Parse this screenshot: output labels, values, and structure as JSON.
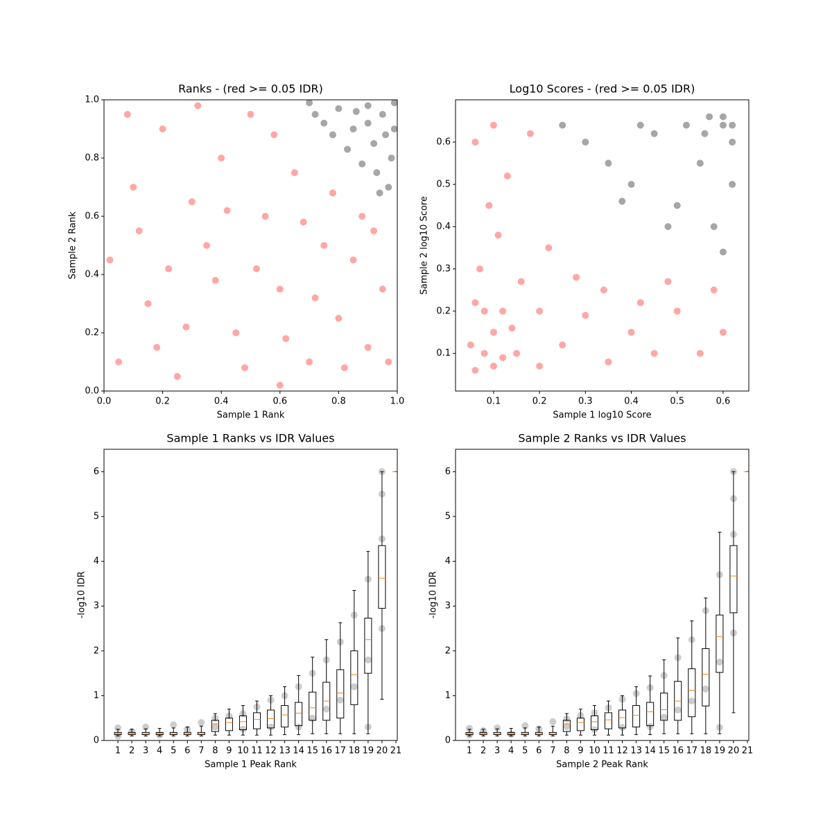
{
  "chart_data": [
    {
      "type": "scatter",
      "title": "Ranks - (red >= 0.05 IDR)",
      "x_label": "Sample 1 Rank",
      "y_label": "Sample 2 Rank",
      "xlim": [
        0,
        1
      ],
      "ylim": [
        0,
        1
      ],
      "xticks": [
        {
          "value": 0,
          "label": "0.0"
        },
        0.2,
        0.4,
        0.6,
        0.8,
        {
          "value": 1,
          "label": "1.0"
        }
      ],
      "yticks": [
        {
          "value": 0,
          "label": "0.0"
        },
        0.2,
        0.4,
        0.6,
        0.8,
        {
          "value": 1,
          "label": "1.0"
        }
      ],
      "series": [
        {
          "color": "#ff0000",
          "alpha": 0.35,
          "x": [
            0.05,
            0.15,
            0.25,
            0.35,
            0.1,
            0.2,
            0.45,
            0.55,
            0.6,
            0.7,
            0.8,
            0.75,
            0.4,
            0.3,
            0.5,
            0.65,
            0.85,
            0.9,
            0.95,
            0.02,
            0.12,
            0.28,
            0.38,
            0.48,
            0.58,
            0.68,
            0.78,
            0.88,
            0.08,
            0.18,
            0.32,
            0.42,
            0.52,
            0.62,
            0.72,
            0.82,
            0.92,
            0.97,
            0.22,
            0.6
          ],
          "y": [
            0.1,
            0.3,
            0.05,
            0.5,
            0.7,
            0.9,
            0.2,
            0.6,
            0.35,
            0.1,
            0.25,
            0.5,
            0.8,
            0.65,
            0.95,
            0.75,
            0.45,
            0.15,
            0.35,
            0.45,
            0.55,
            0.22,
            0.38,
            0.08,
            0.88,
            0.58,
            0.68,
            0.6,
            0.95,
            0.15,
            0.98,
            0.62,
            0.42,
            0.18,
            0.32,
            0.08,
            0.55,
            0.1,
            0.42,
            0.02
          ]
        },
        {
          "color": "#000000",
          "alpha": 0.35,
          "x": [
            0.95,
            0.9,
            0.85,
            0.98,
            0.92,
            0.8,
            0.75,
            0.88,
            0.97,
            0.7,
            0.93,
            0.83,
            0.99,
            0.9,
            0.96,
            0.78,
            0.86,
            0.94,
            0.72,
            0.99
          ],
          "y": [
            0.95,
            0.98,
            0.9,
            0.8,
            0.85,
            0.97,
            0.92,
            0.78,
            0.7,
            0.99,
            0.75,
            0.83,
            0.99,
            0.92,
            0.88,
            0.88,
            0.96,
            0.68,
            0.95,
            0.9
          ]
        }
      ]
    },
    {
      "type": "scatter",
      "title": "Log10 Scores - (red >= 0.05 IDR)",
      "x_label": "Sample 1 log10 Score",
      "y_label": "Sample 2 log10 Score",
      "xlim": [
        0.017,
        0.656
      ],
      "ylim": [
        0.011,
        0.7
      ],
      "xticks": [
        0.1,
        0.2,
        0.3,
        0.4,
        0.5,
        0.6
      ],
      "yticks": [
        0.1,
        0.2,
        0.3,
        0.4,
        0.5,
        0.6
      ],
      "series": [
        {
          "color": "#ff0000",
          "alpha": 0.35,
          "x": [
            0.06,
            0.08,
            0.1,
            0.12,
            0.07,
            0.09,
            0.06,
            0.15,
            0.2,
            0.25,
            0.3,
            0.35,
            0.4,
            0.45,
            0.5,
            0.55,
            0.6,
            0.11,
            0.13,
            0.18,
            0.16,
            0.22,
            0.28,
            0.34,
            0.42,
            0.48,
            0.58,
            0.1,
            0.05,
            0.08,
            0.12,
            0.14,
            0.2,
            0.06,
            0.1
          ],
          "y": [
            0.06,
            0.1,
            0.15,
            0.2,
            0.3,
            0.45,
            0.6,
            0.1,
            0.07,
            0.12,
            0.19,
            0.08,
            0.15,
            0.1,
            0.2,
            0.1,
            0.15,
            0.38,
            0.52,
            0.62,
            0.27,
            0.35,
            0.28,
            0.25,
            0.22,
            0.27,
            0.25,
            0.64,
            0.12,
            0.2,
            0.09,
            0.16,
            0.2,
            0.22,
            0.07
          ]
        },
        {
          "color": "#000000",
          "alpha": 0.35,
          "x": [
            0.3,
            0.4,
            0.5,
            0.56,
            0.6,
            0.62,
            0.58,
            0.45,
            0.35,
            0.25,
            0.55,
            0.6,
            0.52,
            0.42,
            0.62,
            0.48,
            0.38,
            0.6,
            0.57,
            0.62
          ],
          "y": [
            0.6,
            0.5,
            0.45,
            0.62,
            0.64,
            0.6,
            0.4,
            0.62,
            0.55,
            0.64,
            0.55,
            0.34,
            0.64,
            0.64,
            0.5,
            0.4,
            0.46,
            0.66,
            0.66,
            0.64
          ]
        }
      ]
    },
    {
      "type": "box",
      "title": "Sample 1 Ranks vs IDR Values",
      "x_label": "Sample 1 Peak Rank",
      "y_label": "-log10 IDR",
      "xlim": [
        0,
        21.1
      ],
      "ylim": [
        0,
        6.5
      ],
      "xticks": [
        1,
        2,
        3,
        4,
        5,
        6,
        7,
        8,
        9,
        10,
        11,
        12,
        13,
        14,
        15,
        16,
        17,
        18,
        19,
        20,
        21
      ],
      "yticks": [
        0,
        1,
        2,
        3,
        4,
        5,
        6
      ],
      "box_color": "#000000",
      "median_color": "#ff7f0e",
      "box_width": 0.5,
      "x": [
        1,
        2,
        3,
        4,
        5,
        6,
        7,
        8,
        9,
        10,
        11,
        12,
        13,
        14,
        15,
        16,
        17,
        18,
        19,
        20,
        21
      ],
      "whislo": [
        0.1,
        0.1,
        0.1,
        0.1,
        0.1,
        0.1,
        0.1,
        0.12,
        0.12,
        0.12,
        0.12,
        0.12,
        0.13,
        0.13,
        0.15,
        0.15,
        0.15,
        0.15,
        0.15,
        0.92,
        6
      ],
      "q1": [
        0.13,
        0.13,
        0.13,
        0.13,
        0.13,
        0.13,
        0.13,
        0.2,
        0.22,
        0.24,
        0.26,
        0.28,
        0.3,
        0.33,
        0.45,
        0.45,
        0.5,
        0.8,
        1.5,
        2.95,
        6
      ],
      "med": [
        0.15,
        0.15,
        0.15,
        0.15,
        0.15,
        0.15,
        0.15,
        0.37,
        0.4,
        0.42,
        0.47,
        0.49,
        0.57,
        0.61,
        0.73,
        0.88,
        1.06,
        1.47,
        2.25,
        3.62,
        6
      ],
      "q3": [
        0.18,
        0.18,
        0.18,
        0.18,
        0.18,
        0.18,
        0.18,
        0.45,
        0.5,
        0.55,
        0.62,
        0.68,
        0.78,
        0.85,
        1.08,
        1.3,
        1.58,
        2.0,
        2.73,
        4.35,
        6
      ],
      "whishi": [
        0.25,
        0.25,
        0.26,
        0.27,
        0.28,
        0.3,
        0.32,
        0.6,
        0.7,
        0.78,
        0.88,
        1.0,
        1.2,
        1.45,
        1.86,
        2.25,
        2.63,
        3.35,
        4.22,
        6,
        6
      ],
      "points": {
        "color": "#000000",
        "alpha": 0.2,
        "x": [
          1,
          1,
          2,
          3,
          4,
          5,
          6,
          7,
          8,
          8,
          9,
          10,
          10,
          11,
          12,
          12,
          13,
          14,
          14,
          15,
          15,
          16,
          16,
          17,
          17,
          18,
          18,
          19,
          19,
          19,
          20,
          20,
          20,
          20
        ],
        "y": [
          0.1,
          0.28,
          0.2,
          0.3,
          0.12,
          0.35,
          0.25,
          0.4,
          0.5,
          0.3,
          0.55,
          0.6,
          0.25,
          0.75,
          0.9,
          0.3,
          1.0,
          1.2,
          0.3,
          1.5,
          0.5,
          1.8,
          0.7,
          2.2,
          0.9,
          2.8,
          1.2,
          3.6,
          1.8,
          0.3,
          4.5,
          5.5,
          2.5,
          6
        ]
      }
    },
    {
      "type": "box",
      "title": "Sample 2 Ranks vs IDR Values",
      "x_label": "Sample 2 Peak Rank",
      "y_label": "-log10 IDR",
      "xlim": [
        0,
        21.1
      ],
      "ylim": [
        0,
        6.5
      ],
      "xticks": [
        1,
        2,
        3,
        4,
        5,
        6,
        7,
        8,
        9,
        10,
        11,
        12,
        13,
        14,
        15,
        16,
        17,
        18,
        19,
        20,
        21
      ],
      "yticks": [
        0,
        1,
        2,
        3,
        4,
        5,
        6
      ],
      "box_color": "#000000",
      "median_color": "#ff7f0e",
      "box_width": 0.5,
      "x": [
        1,
        2,
        3,
        4,
        5,
        6,
        7,
        8,
        9,
        10,
        11,
        12,
        13,
        14,
        15,
        16,
        17,
        18,
        19,
        20,
        21
      ],
      "whislo": [
        0.1,
        0.1,
        0.1,
        0.1,
        0.1,
        0.1,
        0.1,
        0.12,
        0.12,
        0.12,
        0.12,
        0.12,
        0.13,
        0.13,
        0.15,
        0.15,
        0.15,
        0.15,
        0.15,
        0.62,
        6
      ],
      "q1": [
        0.13,
        0.13,
        0.13,
        0.13,
        0.13,
        0.13,
        0.13,
        0.2,
        0.22,
        0.24,
        0.26,
        0.28,
        0.3,
        0.33,
        0.45,
        0.45,
        0.53,
        0.77,
        1.52,
        2.85,
        6
      ],
      "med": [
        0.15,
        0.15,
        0.15,
        0.15,
        0.15,
        0.15,
        0.15,
        0.37,
        0.4,
        0.42,
        0.46,
        0.51,
        0.56,
        0.64,
        0.69,
        0.88,
        1.12,
        1.48,
        2.32,
        3.67,
        6
      ],
      "q3": [
        0.18,
        0.18,
        0.18,
        0.18,
        0.18,
        0.18,
        0.18,
        0.45,
        0.5,
        0.55,
        0.62,
        0.68,
        0.78,
        0.85,
        1.06,
        1.32,
        1.6,
        2.05,
        2.8,
        4.35,
        6
      ],
      "whishi": [
        0.25,
        0.25,
        0.26,
        0.27,
        0.28,
        0.3,
        0.32,
        0.6,
        0.7,
        0.78,
        0.88,
        1.0,
        1.2,
        1.44,
        1.8,
        2.29,
        2.67,
        3.18,
        4.65,
        6,
        6
      ],
      "points": {
        "color": "#000000",
        "alpha": 0.2,
        "x": [
          1,
          1,
          2,
          3,
          4,
          5,
          6,
          7,
          8,
          8,
          9,
          10,
          10,
          11,
          12,
          12,
          13,
          14,
          14,
          15,
          15,
          16,
          16,
          17,
          17,
          18,
          18,
          19,
          19,
          19,
          20,
          20,
          20,
          20
        ],
        "y": [
          0.12,
          0.27,
          0.22,
          0.28,
          0.14,
          0.33,
          0.26,
          0.42,
          0.48,
          0.31,
          0.56,
          0.62,
          0.24,
          0.73,
          0.92,
          0.29,
          1.05,
          1.18,
          0.31,
          1.45,
          0.52,
          1.85,
          0.68,
          2.25,
          0.88,
          2.9,
          1.15,
          3.7,
          1.75,
          0.29,
          4.6,
          5.4,
          2.4,
          6
        ]
      }
    }
  ]
}
